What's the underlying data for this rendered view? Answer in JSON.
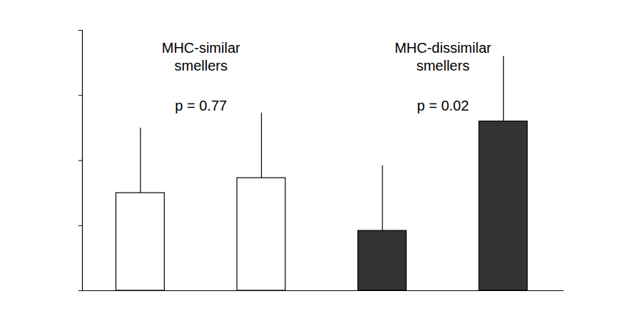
{
  "chart_data": {
    "type": "bar",
    "categories": [
      null,
      null
    ],
    "series": [
      {
        "name": "MHC-similar\nsmellers",
        "color": "#ffffff",
        "values": [
          1.5,
          1.73
        ],
        "errors": [
          1.0,
          1.0
        ]
      },
      {
        "name": "MHC-dissimilar\nsmellers",
        "color": "#333333",
        "values": [
          0.92,
          2.6
        ],
        "errors": [
          1.0,
          1.0
        ]
      }
    ],
    "annotations": [
      "p = 0.77",
      "p = 0.02"
    ],
    "ylim": [
      0,
      4
    ],
    "yticks": [
      0,
      1,
      2,
      3,
      4
    ],
    "tick_labels": false
  }
}
